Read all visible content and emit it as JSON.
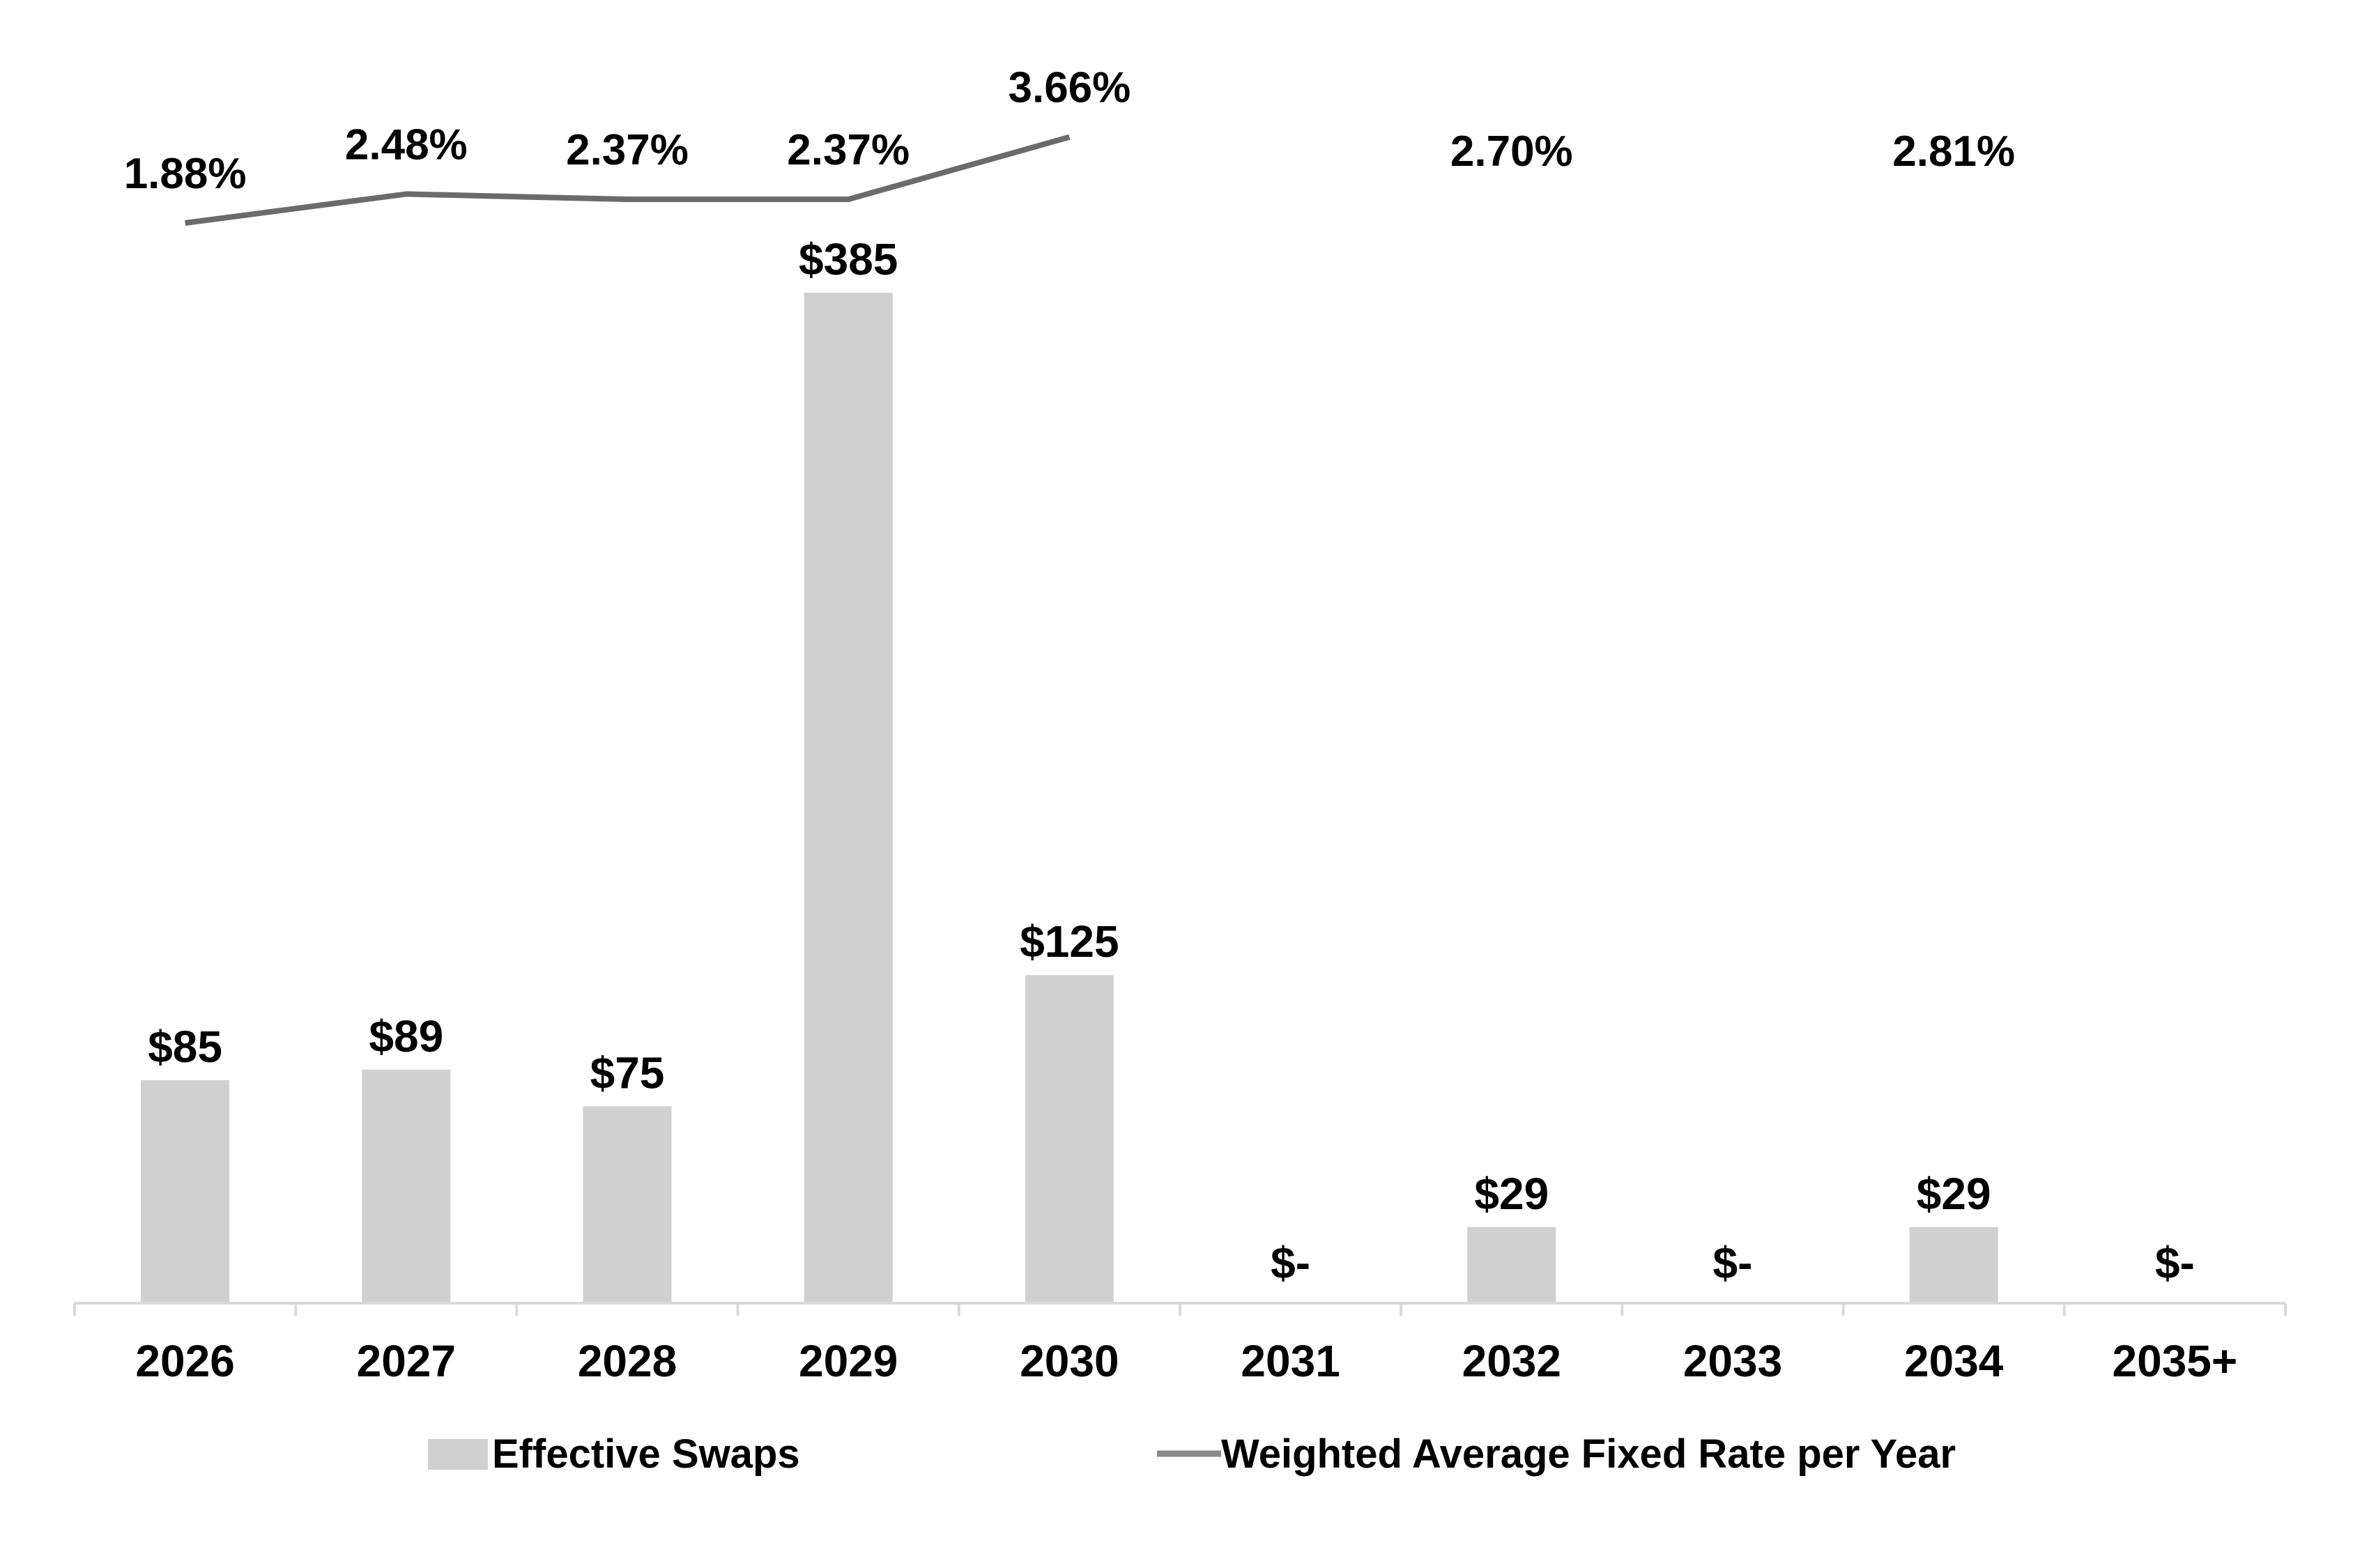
{
  "chart_data": {
    "type": "bar",
    "categories": [
      "2026",
      "2027",
      "2028",
      "2029",
      "2030",
      "2031",
      "2032",
      "2033",
      "2034",
      "2035+"
    ],
    "series": [
      {
        "name": "Effective Swaps",
        "kind": "bar",
        "values": [
          85,
          89,
          75,
          385,
          125,
          0,
          29,
          0,
          29,
          0
        ],
        "labels": [
          "$85",
          "$89",
          "$75",
          "$385",
          "$125",
          "$-",
          "$29",
          "$-",
          "$29",
          "$-"
        ],
        "color": "#d0d0d0"
      },
      {
        "name": "Weighted Average Fixed Rate per Year",
        "kind": "line",
        "values": [
          1.88,
          2.48,
          2.37,
          2.37,
          3.66,
          null,
          2.7,
          null,
          2.81,
          null
        ],
        "labels": [
          "1.88%",
          "2.48%",
          "2.37%",
          "2.37%",
          "3.66%",
          "",
          "2.70%",
          "",
          "2.81%",
          ""
        ],
        "color": "#6b6b6b"
      }
    ],
    "legend_position": "bottom",
    "grid": false,
    "xlabel": "",
    "ylabel": "",
    "title": ""
  }
}
